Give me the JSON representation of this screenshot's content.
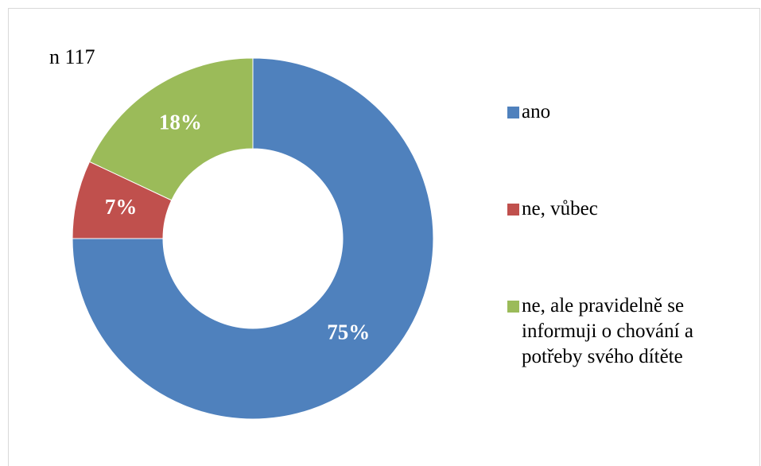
{
  "chart_data": {
    "type": "donut",
    "annotation": "n 117",
    "categories": [
      "ano",
      "ne, vůbec",
      "ne, ale pravidelně se informuji o chování a potřeby svého dítěte"
    ],
    "values": [
      75,
      7,
      18
    ],
    "value_labels": [
      "75%",
      "7%",
      "18%"
    ],
    "colors": [
      "#4f81bd",
      "#c0504d",
      "#9bbb59"
    ],
    "legend": "right"
  }
}
